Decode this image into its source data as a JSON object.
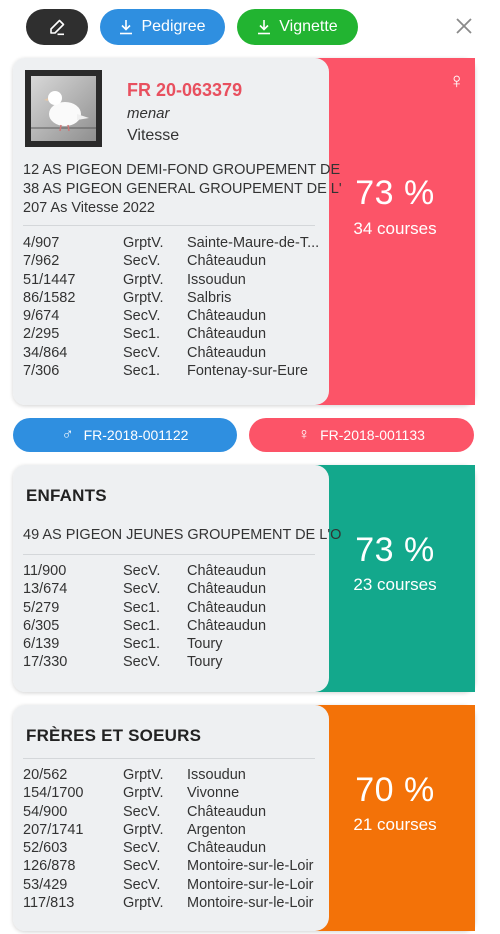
{
  "toolbar": {
    "edit_icon": "pencil-icon",
    "pedigree_label": "Pedigree",
    "vignette_label": "Vignette",
    "download_icon": "download-icon",
    "close_icon": "close-icon"
  },
  "colors": {
    "pedigree": "#2f8fe0",
    "vignette": "#22b431",
    "bird_side": "#fc5468",
    "enfants_side": "#13a88c",
    "freres_side": "#f37208",
    "ring_text": "#e8505f"
  },
  "bird": {
    "ring": "FR 20-063379",
    "name": "menar",
    "category": "Vitesse",
    "sex_icon": "female-icon",
    "prizes": [
      "12 AS PIGEON DEMI-FOND GROUPEMENT DE",
      "38 AS PIGEON GENERAL GROUPEMENT DE L'",
      "207 As Vitesse 2022"
    ],
    "results": [
      {
        "place": "4/907",
        "level": "GrptV.",
        "location": "Sainte-Maure-de-T..."
      },
      {
        "place": "7/962",
        "level": "SecV.",
        "location": "Châteaudun"
      },
      {
        "place": "51/1447",
        "level": "GrptV.",
        "location": "Issoudun"
      },
      {
        "place": "86/1582",
        "level": "GrptV.",
        "location": "Salbris"
      },
      {
        "place": "9/674",
        "level": "SecV.",
        "location": "Châteaudun"
      },
      {
        "place": "2/295",
        "level": "Sec1.",
        "location": "Châteaudun"
      },
      {
        "place": "34/864",
        "level": "SecV.",
        "location": "Châteaudun"
      },
      {
        "place": "7/306",
        "level": "Sec1.",
        "location": "Fontenay-sur-Eure"
      }
    ],
    "percent": "73 %",
    "courses": "34 courses"
  },
  "parents": {
    "father": "FR-2018-001122",
    "mother": "FR-2018-001133"
  },
  "enfants": {
    "title": "ENFANTS",
    "prizes": [
      "49 AS PIGEON JEUNES GROUPEMENT DE L'O"
    ],
    "results": [
      {
        "place": "11/900",
        "level": "SecV.",
        "location": "Châteaudun"
      },
      {
        "place": "13/674",
        "level": "SecV.",
        "location": "Châteaudun"
      },
      {
        "place": "5/279",
        "level": "Sec1.",
        "location": "Châteaudun"
      },
      {
        "place": "6/305",
        "level": "Sec1.",
        "location": "Châteaudun"
      },
      {
        "place": "6/139",
        "level": "Sec1.",
        "location": "Toury"
      },
      {
        "place": "17/330",
        "level": "SecV.",
        "location": "Toury"
      }
    ],
    "percent": "73 %",
    "courses": "23 courses"
  },
  "freres": {
    "title": "FRÈRES ET SOEURS",
    "results": [
      {
        "place": "20/562",
        "level": "GrptV.",
        "location": "Issoudun"
      },
      {
        "place": "154/1700",
        "level": "GrptV.",
        "location": "Vivonne"
      },
      {
        "place": "54/900",
        "level": "SecV.",
        "location": "Châteaudun"
      },
      {
        "place": "207/1741",
        "level": "GrptV.",
        "location": "Argenton"
      },
      {
        "place": "52/603",
        "level": "SecV.",
        "location": "Châteaudun"
      },
      {
        "place": "126/878",
        "level": "SecV.",
        "location": "Montoire-sur-le-Loir"
      },
      {
        "place": "53/429",
        "level": "SecV.",
        "location": "Montoire-sur-le-Loir"
      },
      {
        "place": "117/813",
        "level": "GrptV.",
        "location": "Montoire-sur-le-Loir"
      }
    ],
    "percent": "70 %",
    "courses": "21 courses"
  }
}
